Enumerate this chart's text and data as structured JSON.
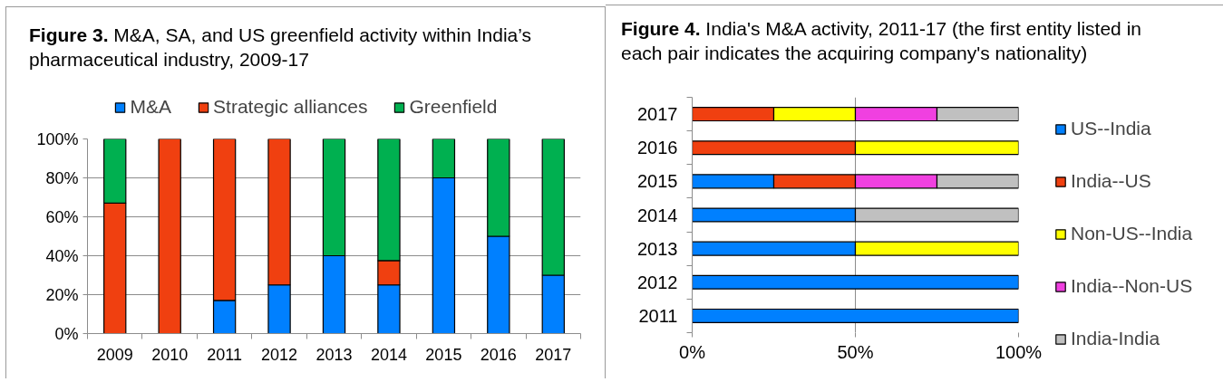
{
  "chart_data": [
    {
      "type": "bar",
      "title": "Figure 3. M&A, SA, and US greenfield activity within India’s pharmaceutical industry, 2009-17",
      "categories": [
        "2009",
        "2010",
        "2011",
        "2012",
        "2013",
        "2014",
        "2015",
        "2016",
        "2017"
      ],
      "stacked": true,
      "series": [
        {
          "name": "M&A",
          "color": "#0080ff",
          "values": [
            0,
            0,
            17,
            25,
            40,
            25,
            80,
            50,
            30
          ]
        },
        {
          "name": "Strategic alliances",
          "color": "#f04010",
          "values": [
            67,
            100,
            83,
            75,
            0,
            12.5,
            0,
            0,
            0
          ]
        },
        {
          "name": "Greenfield",
          "color": "#00b050",
          "values": [
            33,
            0,
            0,
            0,
            60,
            62.5,
            20,
            50,
            70
          ]
        }
      ],
      "ylim": [
        0,
        100
      ],
      "yticks": [
        {
          "value": 0,
          "label": "0%"
        },
        {
          "value": 20,
          "label": "20%"
        },
        {
          "value": 40,
          "label": "40%"
        },
        {
          "value": 60,
          "label": "60%"
        },
        {
          "value": 80,
          "label": "80%"
        },
        {
          "value": 100,
          "label": "100%"
        }
      ],
      "grid": "y",
      "legend": "top"
    },
    {
      "type": "bar",
      "orientation": "horizontal",
      "stacked": true,
      "title": "Figure 4. India's M&A activity, 2011-17 (the first entity listed in each pair indicates the acquiring company's nationality)",
      "categories": [
        "2017",
        "2016",
        "2015",
        "2014",
        "2013",
        "2012",
        "2011"
      ],
      "series": [
        {
          "name": "US--India",
          "color": "#0080ff",
          "values": [
            0,
            0,
            25,
            50,
            50,
            100,
            100
          ]
        },
        {
          "name": "India--US",
          "color": "#f04010",
          "values": [
            25,
            50,
            25,
            0,
            0,
            0,
            0
          ]
        },
        {
          "name": "Non-US--India",
          "color": "#ffff00",
          "values": [
            25,
            50,
            0,
            0,
            50,
            0,
            0
          ]
        },
        {
          "name": "India--Non-US",
          "color": "#f040e0",
          "values": [
            25,
            0,
            25,
            0,
            0,
            0,
            0
          ]
        },
        {
          "name": "India-India",
          "color": "#c0c0c0",
          "values": [
            25,
            0,
            25,
            50,
            0,
            0,
            0
          ]
        }
      ],
      "xlim": [
        0,
        100
      ],
      "xticks": [
        {
          "value": 0,
          "label": "0%"
        },
        {
          "value": 50,
          "label": "50%"
        },
        {
          "value": 100,
          "label": "100%"
        }
      ],
      "grid": "x",
      "legend": "right"
    }
  ]
}
